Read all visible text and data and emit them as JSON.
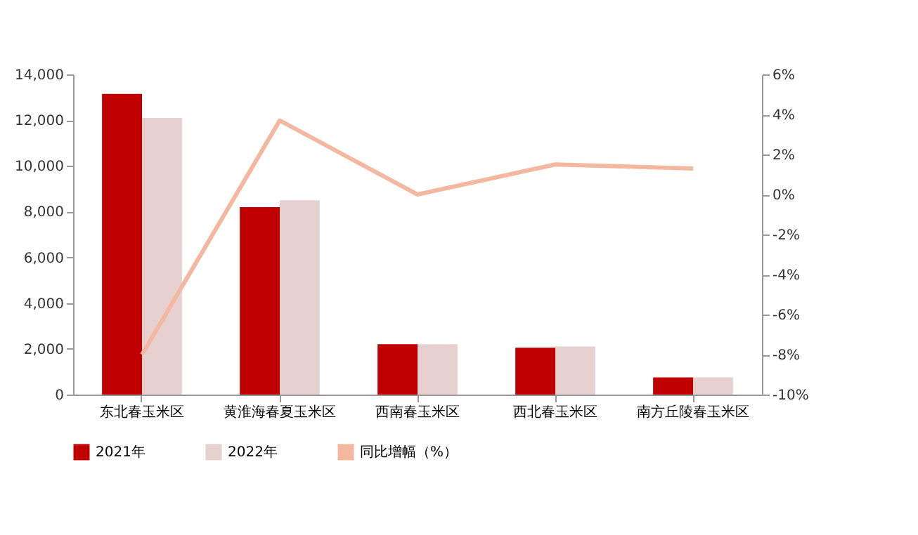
{
  "chart_data": {
    "type": "bar",
    "categories": [
      "东北春玉米区",
      "黄淮海春夏玉米区",
      "西南春玉米区",
      "西北春玉米区",
      "南方丘陵春玉米区"
    ],
    "series": [
      {
        "name": "2021年",
        "color": "#c00000",
        "values": [
          13150,
          8200,
          2200,
          2050,
          750
        ]
      },
      {
        "name": "2022年",
        "color": "#e6d0d0",
        "values": [
          12100,
          8500,
          2200,
          2100,
          750
        ]
      },
      {
        "name": "同比增幅（%）",
        "type": "line",
        "axis": "y2",
        "color": "#f4b8a0",
        "values": [
          -8.0,
          3.7,
          0.0,
          1.5,
          1.3
        ]
      }
    ],
    "ylim": [
      0,
      14000
    ],
    "yticks": [
      0,
      {
        "value": 2000,
        "label": "2,000"
      },
      {
        "value": 4000,
        "label": "4,000"
      },
      {
        "value": 6000,
        "label": "6,000"
      },
      {
        "value": 8000,
        "label": "8,000"
      },
      {
        "value": 10000,
        "label": "10,000"
      },
      {
        "value": 12000,
        "label": "12,000"
      },
      {
        "value": 14000,
        "label": "14,000"
      }
    ],
    "y2lim": [
      -10,
      6
    ],
    "y2ticks": [
      {
        "value": -10,
        "label": "-10%"
      },
      {
        "value": -8,
        "label": "-8%"
      },
      {
        "value": -6,
        "label": "-6%"
      },
      {
        "value": -4,
        "label": "-4%"
      },
      {
        "value": -2,
        "label": "-2%"
      },
      {
        "value": 0,
        "label": "0%"
      },
      {
        "value": 2,
        "label": "2%"
      },
      {
        "value": 4,
        "label": "4%"
      },
      {
        "value": 6,
        "label": "6%"
      }
    ],
    "legend": "bottom",
    "grid": false,
    "marker": "none"
  }
}
